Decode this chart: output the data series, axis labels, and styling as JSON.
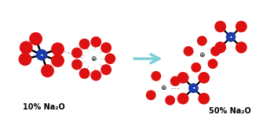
{
  "label_10": "10% Na₂O",
  "label_50": "50% Na₂O",
  "arrow_color": "#7ecfd4",
  "p_color": "#1a3aab",
  "o_color": "#dd1111",
  "bond_color": "#000000",
  "dashed_color": "#aaaaaa",
  "bg_color": "#ffffff",
  "fig_w": 3.49,
  "fig_h": 1.65
}
